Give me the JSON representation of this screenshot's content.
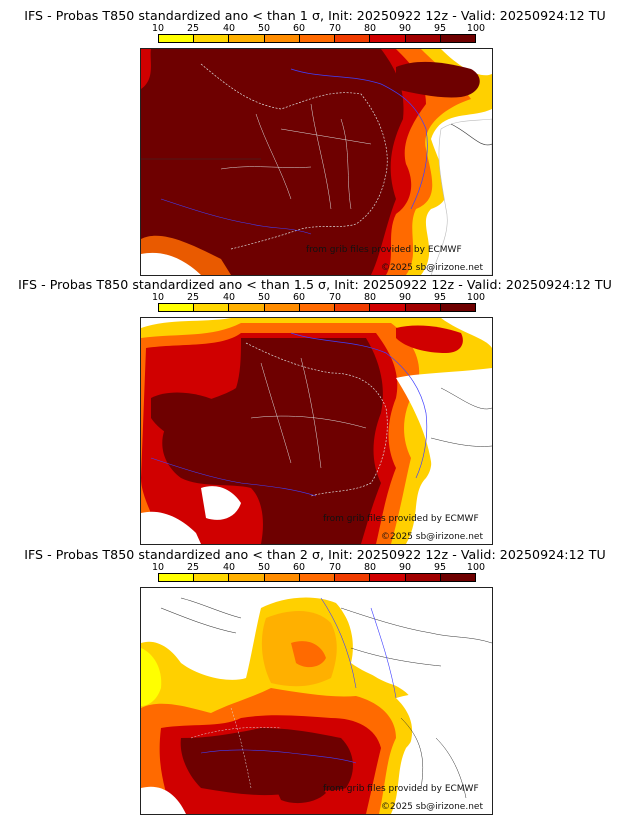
{
  "panels": [
    {
      "title": "IFS - Probas T850  standardized ano < than 1 σ, Init: 20250922 12z - Valid: 20250924:12 TU"
    },
    {
      "title": "IFS - Probas T850  standardized ano < than 1.5 σ, Init: 20250922 12z - Valid: 20250924:12 TU"
    },
    {
      "title": "IFS - Probas T850  standardized ano < than 2 σ, Init: 20250922 12z - Valid: 20250924:12 TU"
    }
  ],
  "colorbar": {
    "ticks": [
      "10",
      "25",
      "40",
      "50",
      "60",
      "70",
      "80",
      "90",
      "95",
      "100"
    ],
    "colors": [
      "#ffff00",
      "#ffd700",
      "#ffb000",
      "#ff8c00",
      "#ff6a00",
      "#f03c00",
      "#d00000",
      "#a00000",
      "#6e0000"
    ]
  },
  "credits": {
    "source": "from grib files provided by ECMWF",
    "copyright": "©2025 sb@irizone.net"
  },
  "colors": {
    "land_border": "#333333",
    "river": "#3a3aff",
    "dept_border": "#dddddd"
  }
}
